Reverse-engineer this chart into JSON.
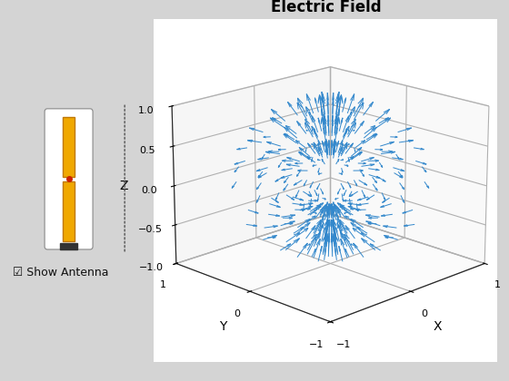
{
  "title": "Electric Field",
  "xlabel": "X",
  "ylabel": "Y",
  "zlabel": "Z",
  "xlim": [
    -1,
    1
  ],
  "ylim": [
    -1,
    1
  ],
  "zlim": [
    -1,
    1
  ],
  "arrow_color": "#3388cc",
  "bg_color": "#d4d4d4",
  "inset_bg": "#f2f2f2",
  "antenna_color": "#f0a800",
  "antenna_edge": "#c07800",
  "dot_color": "#cc2200",
  "base_color": "#333333",
  "checkbox_label": "Show Antenna"
}
